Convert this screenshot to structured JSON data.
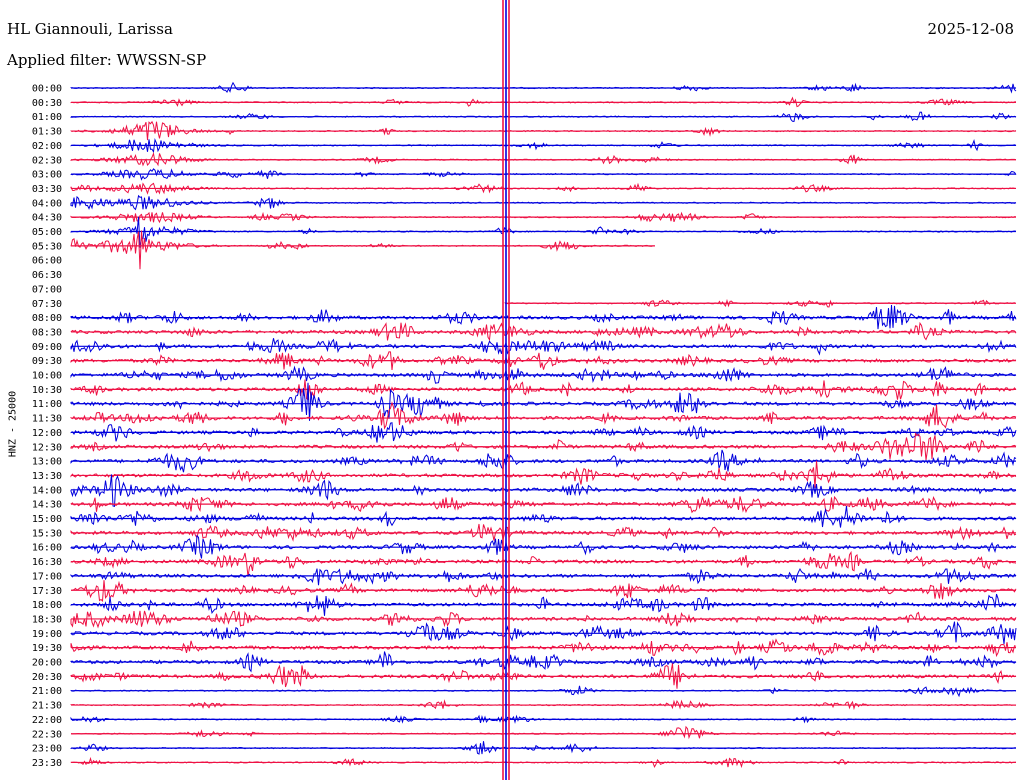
{
  "header": {
    "station": "HL Giannouli, Larissa",
    "date": "2025-12-08",
    "filter_prefix": "Applied filter:",
    "filter": "WWSSN-SP"
  },
  "channel_label": "HNZ - 25000",
  "colors": {
    "even_trace": "#0000dd",
    "odd_trace": "#ee1144",
    "text": "#000000"
  },
  "time_labels": [
    "00:00",
    "00:30",
    "01:00",
    "01:30",
    "02:00",
    "02:30",
    "03:00",
    "03:30",
    "04:00",
    "04:30",
    "05:00",
    "05:30",
    "06:00",
    "06:30",
    "07:00",
    "07:30",
    "08:00",
    "08:30",
    "09:00",
    "09:30",
    "10:00",
    "10:30",
    "11:00",
    "11:30",
    "12:00",
    "12:30",
    "13:00",
    "13:30",
    "14:00",
    "14:30",
    "15:00",
    "15:30",
    "16:00",
    "16:30",
    "17:00",
    "17:30",
    "18:00",
    "18:30",
    "19:00",
    "19:30",
    "20:00",
    "20:30",
    "21:00",
    "21:30",
    "22:00",
    "22:30",
    "23:00",
    "23:30"
  ],
  "gap_rows": [
    12,
    13,
    14
  ]
}
